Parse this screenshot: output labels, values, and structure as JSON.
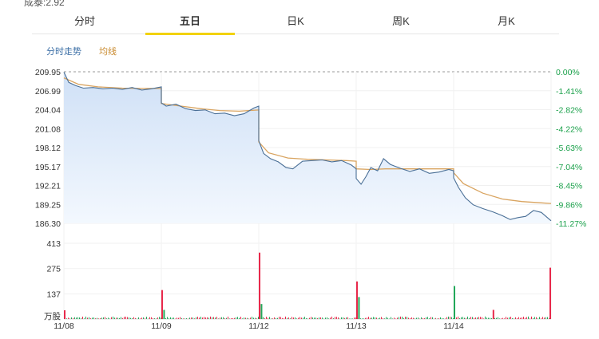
{
  "top_clip_text": "成泰:2.92",
  "tabs": [
    {
      "label": "分时",
      "active": false
    },
    {
      "label": "五日",
      "active": true
    },
    {
      "label": "日K",
      "active": false
    },
    {
      "label": "周K",
      "active": false
    },
    {
      "label": "月K",
      "active": false
    }
  ],
  "legend": {
    "trend": "分时走势",
    "avg": "均线"
  },
  "colors": {
    "price_line": "#4a6f96",
    "avg_line": "#d9a460",
    "area_top": "#cfe0f6",
    "area_bottom": "#f3f8fe",
    "up": "#e8294b",
    "down": "#22a85a",
    "left_axis_price": "#333333",
    "right_axis_pct": "#1aa04a",
    "dashed_base": "#999999"
  },
  "chart_data": {
    "type": "line",
    "price_axis": {
      "ticks": [
        "209.95",
        "206.99",
        "204.04",
        "201.08",
        "198.12",
        "195.17",
        "192.21",
        "189.25",
        "186.30"
      ],
      "ylim": [
        186.3,
        209.95
      ]
    },
    "pct_axis": {
      "ticks": [
        "0.00%",
        "-1.41%",
        "-2.82%",
        "-4.22%",
        "-5.63%",
        "-7.04%",
        "-8.45%",
        "-9.86%",
        "-11.27%"
      ]
    },
    "volume_axis": {
      "ticks": [
        "413",
        "275",
        "137"
      ],
      "unit": "万股",
      "ylim": [
        0,
        413
      ]
    },
    "days": [
      "11/08",
      "11/09",
      "11/12",
      "11/13",
      "11/14"
    ],
    "series": [
      {
        "points": [
          [
            0,
            209.9
          ],
          [
            0.05,
            208.3
          ],
          [
            0.12,
            207.8
          ],
          [
            0.2,
            207.4
          ],
          [
            0.3,
            207.5
          ],
          [
            0.4,
            207.3
          ],
          [
            0.5,
            207.4
          ],
          [
            0.6,
            207.2
          ],
          [
            0.7,
            207.5
          ],
          [
            0.8,
            207.1
          ],
          [
            0.9,
            207.3
          ],
          [
            1.0,
            207.6
          ],
          [
            1.0,
            205.1
          ],
          [
            1.05,
            204.6
          ],
          [
            1.15,
            204.9
          ],
          [
            1.25,
            204.2
          ],
          [
            1.35,
            203.9
          ],
          [
            1.45,
            204.0
          ],
          [
            1.55,
            203.4
          ],
          [
            1.65,
            203.5
          ],
          [
            1.75,
            203.1
          ],
          [
            1.85,
            203.4
          ],
          [
            1.95,
            204.3
          ],
          [
            2.0,
            204.6
          ],
          [
            2.0,
            199.2
          ],
          [
            2.05,
            197.2
          ],
          [
            2.12,
            196.4
          ],
          [
            2.2,
            195.9
          ],
          [
            2.28,
            195.0
          ],
          [
            2.35,
            194.8
          ],
          [
            2.45,
            196.0
          ],
          [
            2.55,
            196.1
          ],
          [
            2.65,
            196.2
          ],
          [
            2.75,
            195.9
          ],
          [
            2.85,
            196.1
          ],
          [
            2.95,
            195.4
          ],
          [
            3.0,
            194.8
          ],
          [
            3.0,
            193.3
          ],
          [
            3.05,
            192.4
          ],
          [
            3.1,
            193.6
          ],
          [
            3.15,
            195.0
          ],
          [
            3.22,
            194.5
          ],
          [
            3.28,
            196.4
          ],
          [
            3.35,
            195.5
          ],
          [
            3.45,
            194.9
          ],
          [
            3.55,
            194.4
          ],
          [
            3.65,
            194.8
          ],
          [
            3.75,
            194.1
          ],
          [
            3.85,
            194.3
          ],
          [
            3.95,
            194.7
          ],
          [
            4.0,
            194.5
          ],
          [
            4.0,
            193.4
          ],
          [
            4.05,
            191.9
          ],
          [
            4.12,
            190.3
          ],
          [
            4.2,
            189.2
          ],
          [
            4.3,
            188.6
          ],
          [
            4.4,
            188.1
          ],
          [
            4.5,
            187.5
          ],
          [
            4.58,
            186.9
          ],
          [
            4.66,
            187.2
          ],
          [
            4.74,
            187.4
          ],
          [
            4.82,
            188.3
          ],
          [
            4.9,
            188.0
          ],
          [
            5.0,
            186.7
          ]
        ]
      },
      {
        "points": [
          [
            0,
            209.0
          ],
          [
            0.15,
            208.0
          ],
          [
            0.35,
            207.6
          ],
          [
            0.6,
            207.4
          ],
          [
            0.8,
            207.35
          ],
          [
            1.0,
            207.35
          ],
          [
            1.0,
            205.0
          ],
          [
            1.2,
            204.6
          ],
          [
            1.4,
            204.2
          ],
          [
            1.6,
            203.9
          ],
          [
            1.8,
            203.8
          ],
          [
            2.0,
            204.0
          ],
          [
            2.0,
            199.0
          ],
          [
            2.1,
            197.3
          ],
          [
            2.3,
            196.5
          ],
          [
            2.5,
            196.3
          ],
          [
            2.7,
            196.2
          ],
          [
            2.9,
            196.1
          ],
          [
            3.0,
            196.0
          ],
          [
            3.0,
            194.8
          ],
          [
            3.15,
            194.7
          ],
          [
            3.3,
            194.8
          ],
          [
            3.5,
            194.8
          ],
          [
            3.7,
            194.8
          ],
          [
            3.9,
            194.8
          ],
          [
            4.0,
            194.8
          ],
          [
            4.0,
            194.2
          ],
          [
            4.1,
            192.5
          ],
          [
            4.3,
            191.0
          ],
          [
            4.5,
            190.1
          ],
          [
            4.7,
            189.7
          ],
          [
            4.9,
            189.5
          ],
          [
            5.0,
            189.4
          ]
        ]
      }
    ],
    "volume_spikes": [
      {
        "x": 0.0,
        "v": 48,
        "dir": "up"
      },
      {
        "x": 1.0,
        "v": 158,
        "dir": "up"
      },
      {
        "x": 1.02,
        "v": 50,
        "dir": "down"
      },
      {
        "x": 2.0,
        "v": 362,
        "dir": "up"
      },
      {
        "x": 2.02,
        "v": 82,
        "dir": "down"
      },
      {
        "x": 3.0,
        "v": 205,
        "dir": "up"
      },
      {
        "x": 3.02,
        "v": 120,
        "dir": "down"
      },
      {
        "x": 4.0,
        "v": 180,
        "dir": "down"
      },
      {
        "x": 4.4,
        "v": 50,
        "dir": "up"
      },
      {
        "x": 5.0,
        "v": 280,
        "dir": "up"
      }
    ]
  }
}
